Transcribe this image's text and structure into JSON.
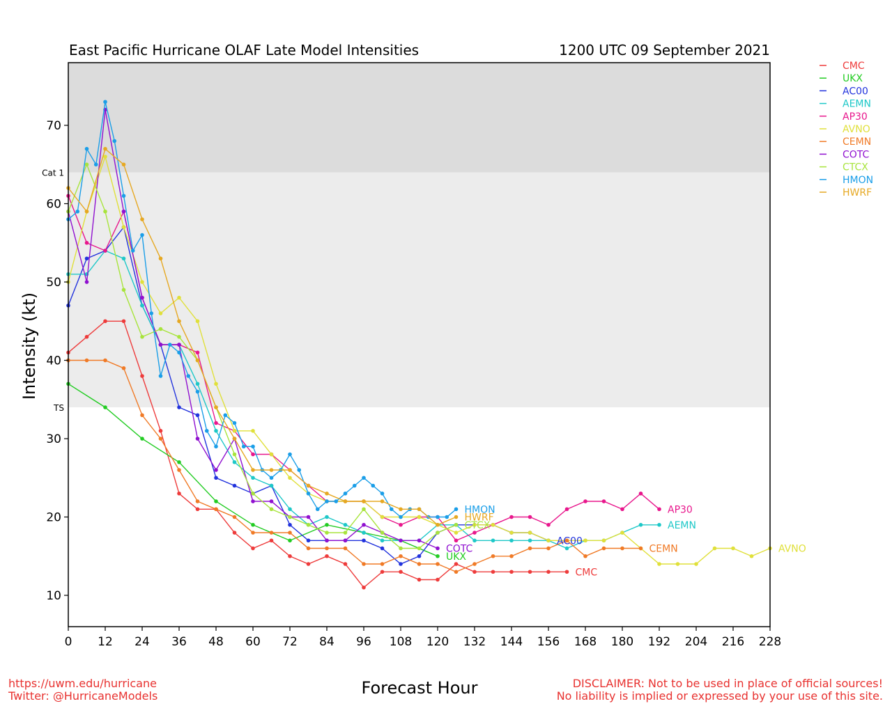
{
  "header": {
    "title_left": "East Pacific Hurricane OLAF Late Model Intensities",
    "title_right": "1200 UTC 09 September 2021"
  },
  "footer": {
    "url": "https://uwm.edu/hurricane",
    "twitter": "Twitter: @HurricaneModels",
    "disclaimer_1": "DISCLAIMER: Not to be used in place of official sources!",
    "disclaimer_2": "No liability is implied or expressed by your use of this site.",
    "color_footer": "#e8312f"
  },
  "chart_data": {
    "type": "line",
    "title": "East Pacific Hurricane OLAF Late Model Intensities",
    "xlabel": "Forecast Hour",
    "ylabel": "Intensity (kt)",
    "xlim": [
      0,
      228
    ],
    "ylim": [
      6,
      78
    ],
    "xticks": [
      0,
      12,
      24,
      36,
      48,
      60,
      72,
      84,
      96,
      108,
      120,
      132,
      144,
      156,
      168,
      180,
      192,
      204,
      216,
      228
    ],
    "yticks": [
      10,
      20,
      30,
      40,
      50,
      60,
      70
    ],
    "bands": [
      {
        "label": "TS",
        "from": 34,
        "to": 64,
        "color": "#ececec"
      },
      {
        "label": "Cat 1",
        "from": 64,
        "to": 78,
        "color": "#dcdcdc"
      }
    ],
    "legend_position": "right",
    "grid": false,
    "series": [
      {
        "name": "CMC",
        "color": "#ee3b3b",
        "x": [
          0,
          6,
          12,
          18,
          24,
          30,
          36,
          42,
          48,
          54,
          60,
          66,
          72,
          78,
          84,
          90,
          96,
          102,
          108,
          114,
          120,
          126,
          132,
          138,
          144,
          150,
          156,
          162
        ],
        "y": [
          41,
          43,
          45,
          45,
          38,
          31,
          23,
          21,
          21,
          18,
          16,
          17,
          15,
          14,
          15,
          14,
          11,
          13,
          13,
          12,
          12,
          14,
          13,
          13,
          13,
          13,
          13,
          13
        ]
      },
      {
        "name": "UKX",
        "color": "#22cc22",
        "x": [
          0,
          12,
          24,
          36,
          48,
          60,
          72,
          84,
          96,
          108,
          120
        ],
        "y": [
          37,
          34,
          30,
          27,
          22,
          19,
          17,
          19,
          18,
          17,
          15
        ]
      },
      {
        "name": "AC00",
        "color": "#2233dd",
        "x": [
          0,
          6,
          12,
          18,
          24,
          30,
          36,
          42,
          48,
          54,
          60,
          66,
          72,
          78,
          84,
          90,
          96,
          102,
          108,
          114,
          120,
          126,
          132,
          138,
          144,
          150,
          156
        ],
        "y": [
          47,
          53,
          54,
          57,
          47,
          42,
          34,
          33,
          25,
          24,
          23,
          24,
          19,
          17,
          17,
          17,
          17,
          16,
          14,
          15,
          18,
          19,
          19,
          19,
          18,
          18,
          17
        ]
      },
      {
        "name": "AEMN",
        "color": "#1ec8c8",
        "x": [
          0,
          6,
          12,
          18,
          24,
          30,
          36,
          42,
          48,
          54,
          60,
          66,
          72,
          78,
          84,
          90,
          96,
          102,
          108,
          114,
          120,
          126,
          132,
          138,
          144,
          150,
          156,
          162,
          168,
          174,
          180,
          186,
          192
        ],
        "y": [
          51,
          51,
          54,
          53,
          47,
          42,
          42,
          37,
          31,
          27,
          25,
          24,
          21,
          19,
          20,
          19,
          18,
          17,
          17,
          17,
          19,
          19,
          17,
          17,
          17,
          17,
          17,
          16,
          17,
          17,
          18,
          19,
          19
        ]
      },
      {
        "name": "AP30",
        "color": "#e8168c",
        "x": [
          0,
          6,
          12,
          18,
          24,
          30,
          36,
          42,
          48,
          54,
          60,
          66,
          72,
          78,
          84,
          90,
          96,
          102,
          108,
          114,
          120,
          126,
          132,
          138,
          144,
          150,
          156,
          162,
          168,
          174,
          180,
          186,
          192
        ],
        "y": [
          61,
          55,
          54,
          59,
          48,
          42,
          42,
          41,
          32,
          31,
          28,
          28,
          26,
          24,
          22,
          22,
          22,
          20,
          19,
          20,
          20,
          17,
          18,
          19,
          20,
          20,
          19,
          21,
          22,
          22,
          21,
          23,
          21
        ]
      },
      {
        "name": "AVNO",
        "color": "#e0e03a",
        "x": [
          0,
          6,
          12,
          18,
          24,
          30,
          36,
          42,
          48,
          54,
          60,
          66,
          72,
          78,
          84,
          90,
          96,
          102,
          108,
          114,
          120,
          126,
          132,
          138,
          144,
          150,
          156,
          162,
          168,
          174,
          180,
          186,
          192,
          198,
          204,
          210,
          216,
          222,
          228
        ],
        "y": [
          50,
          59,
          66,
          57,
          50,
          46,
          48,
          45,
          37,
          31,
          31,
          28,
          25,
          23,
          22,
          22,
          22,
          20,
          20,
          20,
          19,
          18,
          19,
          19,
          18,
          18,
          17,
          17,
          17,
          17,
          18,
          16,
          14,
          14,
          14,
          16,
          16,
          15,
          16
        ]
      },
      {
        "name": "CEMN",
        "color": "#f07a26",
        "x": [
          0,
          6,
          12,
          18,
          24,
          30,
          36,
          42,
          48,
          54,
          60,
          66,
          72,
          78,
          84,
          90,
          96,
          102,
          108,
          114,
          120,
          126,
          132,
          138,
          144,
          150,
          156,
          162,
          168,
          174,
          180,
          186
        ],
        "y": [
          40,
          40,
          40,
          39,
          33,
          30,
          26,
          22,
          21,
          20,
          18,
          18,
          18,
          16,
          16,
          16,
          14,
          14,
          15,
          14,
          14,
          13,
          14,
          15,
          15,
          16,
          16,
          17,
          15,
          16,
          16,
          16
        ]
      },
      {
        "name": "COTC",
        "color": "#9010d0",
        "x": [
          0,
          6,
          12,
          18,
          24,
          30,
          36,
          42,
          48,
          54,
          60,
          66,
          72,
          78,
          84,
          90,
          96,
          102,
          108,
          114,
          120
        ],
        "y": [
          59,
          50,
          72,
          59,
          48,
          42,
          42,
          30,
          26,
          30,
          22,
          22,
          20,
          20,
          17,
          17,
          19,
          18,
          17,
          17,
          16
        ]
      },
      {
        "name": "CTCX",
        "color": "#a8e43c",
        "x": [
          0,
          6,
          12,
          18,
          24,
          30,
          36,
          42,
          48,
          54,
          60,
          66,
          72,
          78,
          84,
          90,
          96,
          102,
          108,
          114,
          120,
          126
        ],
        "y": [
          59,
          65,
          59,
          49,
          43,
          44,
          43,
          40,
          34,
          28,
          23,
          21,
          20,
          19,
          18,
          18,
          21,
          18,
          16,
          16,
          18,
          19
        ]
      },
      {
        "name": "HMON",
        "color": "#1a9ee8",
        "x": [
          0,
          3,
          6,
          9,
          12,
          15,
          18,
          21,
          24,
          27,
          30,
          33,
          36,
          39,
          42,
          45,
          48,
          51,
          54,
          57,
          60,
          63,
          66,
          69,
          72,
          75,
          78,
          81,
          84,
          87,
          90,
          93,
          96,
          99,
          102,
          105,
          108,
          111,
          114,
          117,
          120,
          123,
          126
        ],
        "y": [
          58,
          59,
          67,
          65,
          73,
          68,
          61,
          54,
          56,
          46,
          38,
          42,
          41,
          38,
          36,
          31,
          29,
          33,
          32,
          29,
          29,
          26,
          25,
          26,
          28,
          26,
          23,
          21,
          22,
          22,
          23,
          24,
          25,
          24,
          23,
          21,
          20,
          21,
          21,
          20,
          20,
          20,
          21
        ]
      },
      {
        "name": "HWRF",
        "color": "#e6a822",
        "x": [
          0,
          6,
          12,
          18,
          24,
          30,
          36,
          42,
          48,
          54,
          60,
          66,
          72,
          78,
          84,
          90,
          96,
          102,
          108,
          114,
          120,
          126
        ],
        "y": [
          62,
          59,
          67,
          65,
          58,
          53,
          45,
          40,
          34,
          30,
          26,
          26,
          26,
          24,
          23,
          22,
          22,
          22,
          21,
          21,
          19,
          20
        ]
      }
    ],
    "end_labels": [
      {
        "series": "HMON",
        "text": "HMON"
      },
      {
        "series": "HWRF",
        "text": "HWRF"
      },
      {
        "series": "CTCX",
        "text": "CTCX"
      },
      {
        "series": "AC00",
        "text": "AC00"
      },
      {
        "series": "COTC",
        "text": "COTC"
      },
      {
        "series": "UKX",
        "text": "UKX"
      },
      {
        "series": "CMC",
        "text": "CMC"
      },
      {
        "series": "AP30",
        "text": "AP30"
      },
      {
        "series": "AEMN",
        "text": "AEMN"
      },
      {
        "series": "CEMN",
        "text": "CEMN"
      },
      {
        "series": "AVNO",
        "text": "AVNO"
      }
    ]
  }
}
